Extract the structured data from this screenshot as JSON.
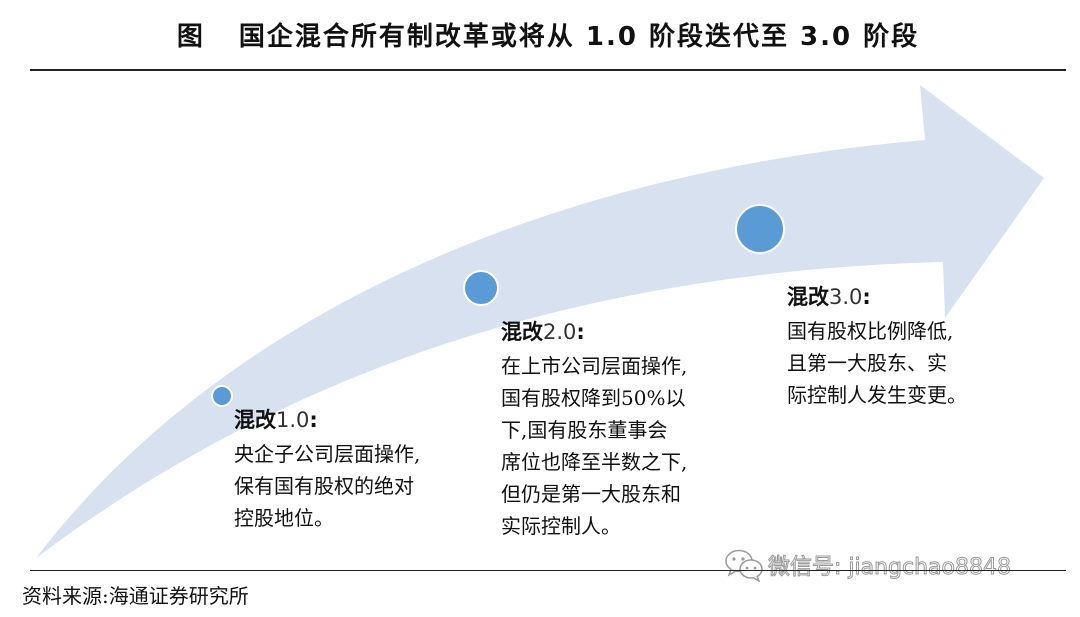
{
  "header": {
    "prefix": "图",
    "title": "国企混合所有制改革或将从 1.0 阶段迭代至 3.0 阶段"
  },
  "colors": {
    "arrow_fill": "#d7e1f0",
    "dot_fill": "#5b9bd5",
    "dot_stroke": "#ffffff",
    "rule": "#222222"
  },
  "stages": [
    {
      "name": "混改",
      "version": "1.0",
      "colon": ":",
      "lines": [
        "央企子公司层面操作,",
        "保有国有股权的绝对",
        "控股地位。"
      ]
    },
    {
      "name": "混改",
      "version": "2.0",
      "colon": ":",
      "lines": [
        "在上市公司层面操作,",
        "国有股权降到50%以",
        "下,国有股东董事会",
        "席位也降至半数之下,",
        "但仍是第一大股东和",
        "实际控制人。"
      ]
    },
    {
      "name": "混改",
      "version": "3.0",
      "colon": ":",
      "lines": [
        "国有股权比例降低,",
        "且第一大股东、实",
        "际控制人发生变更。"
      ]
    }
  ],
  "source": "资料来源:海通证券研究所",
  "watermark": {
    "icon": "wechat-icon",
    "text": "微信号: jiangchao8848"
  }
}
